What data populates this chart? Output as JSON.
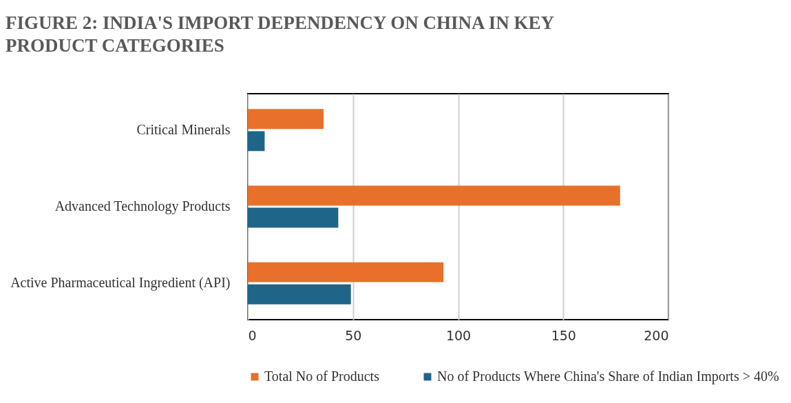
{
  "chart_data": {
    "type": "bar",
    "orientation": "horizontal",
    "title": "FIGURE 2: INDIA'S IMPORT DEPENDENCY ON CHINA IN KEY PRODUCT CATEGORIES",
    "categories": [
      "Critical Minerals",
      "Advanced Technology Products",
      "Active Pharmaceutical Ingredient (API)"
    ],
    "series": [
      {
        "name": "Total No of Products",
        "color": "#e8702a",
        "values": [
          36,
          177,
          93
        ]
      },
      {
        "name": "No of Products Where China's Share of Indian Imports > 40%",
        "color": "#1f6589",
        "values": [
          8,
          43,
          49
        ]
      }
    ],
    "xlim": [
      0,
      200
    ],
    "xticks": [
      0,
      50,
      100,
      150,
      200
    ],
    "grid": "x",
    "legend": "bottom"
  }
}
